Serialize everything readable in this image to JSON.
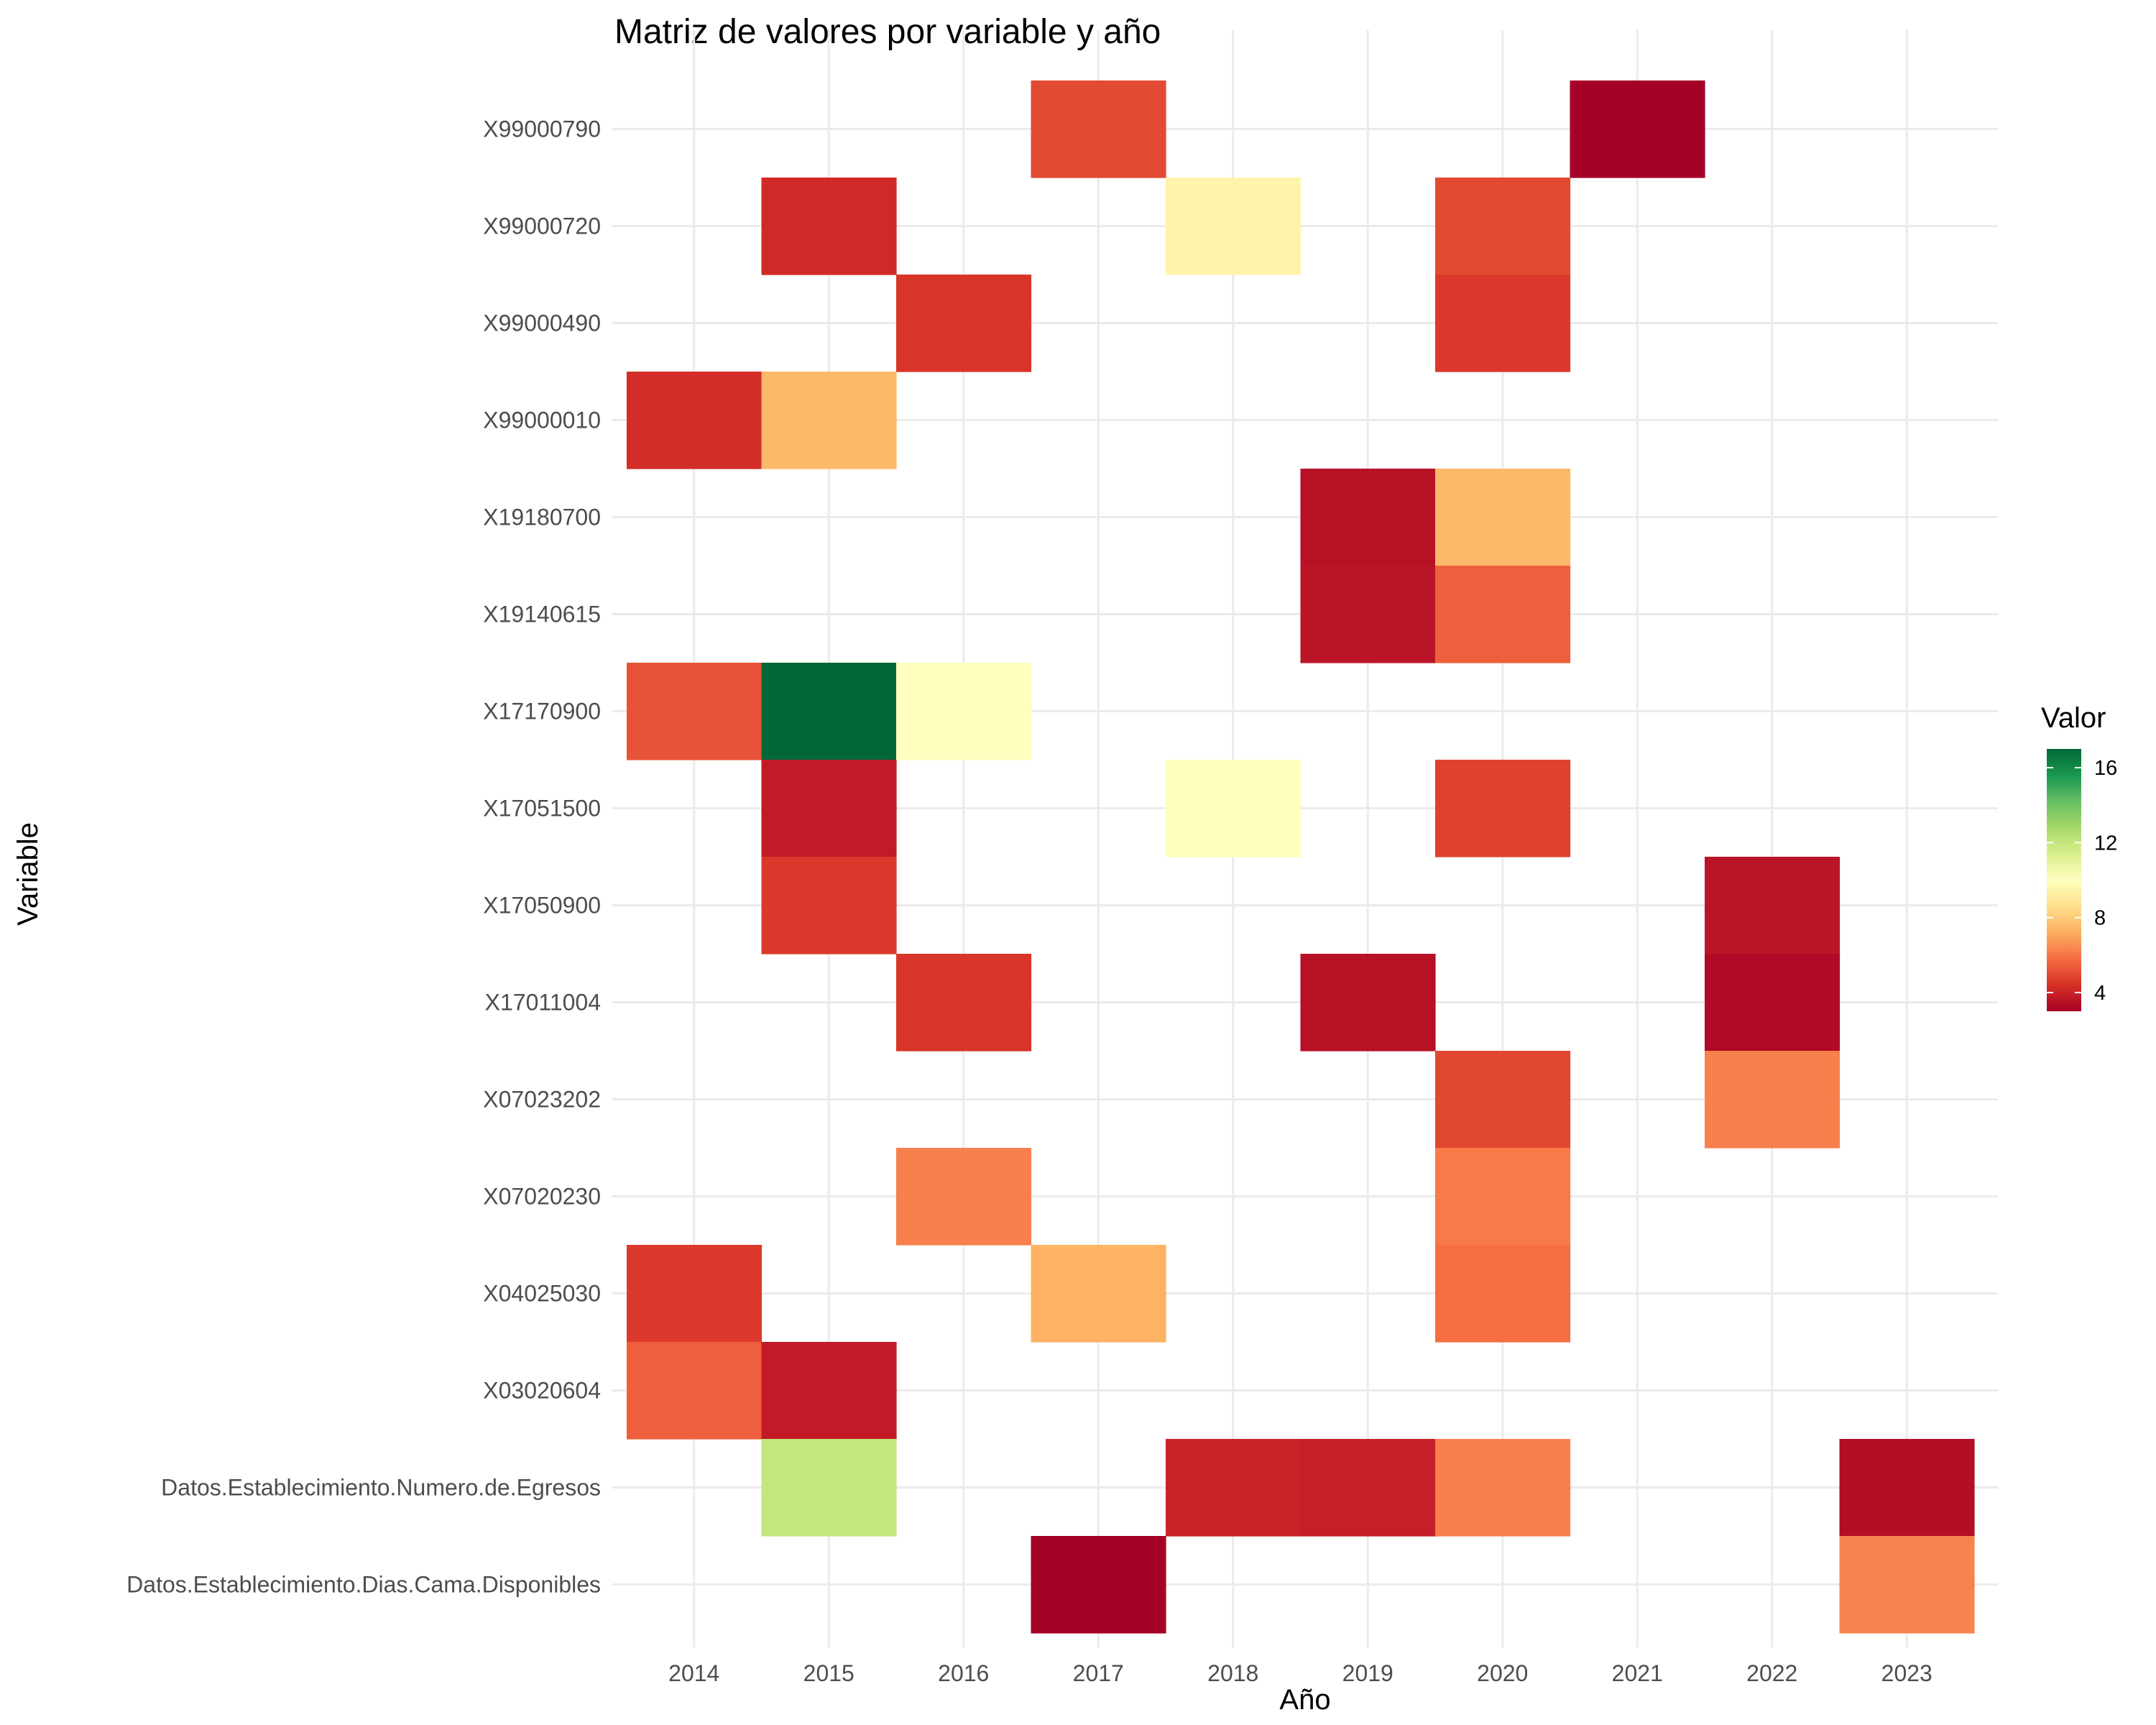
{
  "chart_data": {
    "type": "heatmap",
    "title": "Matriz de valores por variable y año",
    "xlabel": "Año",
    "ylabel": "Variable",
    "x": [
      "2014",
      "2015",
      "2016",
      "2017",
      "2018",
      "2019",
      "2020",
      "2021",
      "2022",
      "2023"
    ],
    "y": [
      "X99000790",
      "X99000720",
      "X99000490",
      "X99000010",
      "X19180700",
      "X19140615",
      "X17170900",
      "X17051500",
      "X17050900",
      "X17011004",
      "X07023202",
      "X07020230",
      "X04025030",
      "X03020604",
      "Datos.Establecimiento.Numero.de.Egresos",
      "Datos.Establecimiento.Dias.Cama.Disponibles"
    ],
    "cells": [
      {
        "x": "2017",
        "y": "X99000790",
        "value": 5
      },
      {
        "x": "2021",
        "y": "X99000790",
        "value": 3
      },
      {
        "x": "2015",
        "y": "X99000720",
        "value": 4.2
      },
      {
        "x": "2018",
        "y": "X99000720",
        "value": 9.5
      },
      {
        "x": "2020",
        "y": "X99000720",
        "value": 5
      },
      {
        "x": "2016",
        "y": "X99000490",
        "value": 4.5
      },
      {
        "x": "2020",
        "y": "X99000490",
        "value": 4.6
      },
      {
        "x": "2014",
        "y": "X99000010",
        "value": 4.3
      },
      {
        "x": "2015",
        "y": "X99000010",
        "value": 7.5
      },
      {
        "x": "2019",
        "y": "X19180700",
        "value": 3.5
      },
      {
        "x": "2020",
        "y": "X19180700",
        "value": 7.5
      },
      {
        "x": "2019",
        "y": "X19140615",
        "value": 3.6
      },
      {
        "x": "2020",
        "y": "X19140615",
        "value": 5.5
      },
      {
        "x": "2014",
        "y": "X17170900",
        "value": 5.2
      },
      {
        "x": "2015",
        "y": "X17170900",
        "value": 17
      },
      {
        "x": "2016",
        "y": "X17170900",
        "value": 10
      },
      {
        "x": "2015",
        "y": "X17051500",
        "value": 3.8
      },
      {
        "x": "2018",
        "y": "X17051500",
        "value": 10
      },
      {
        "x": "2020",
        "y": "X17051500",
        "value": 4.8
      },
      {
        "x": "2015",
        "y": "X17050900",
        "value": 4.6
      },
      {
        "x": "2022",
        "y": "X17050900",
        "value": 3.6
      },
      {
        "x": "2016",
        "y": "X17011004",
        "value": 4.5
      },
      {
        "x": "2019",
        "y": "X17011004",
        "value": 3.5
      },
      {
        "x": "2022",
        "y": "X17011004",
        "value": 3.3
      },
      {
        "x": "2020",
        "y": "X07023202",
        "value": 4.9
      },
      {
        "x": "2022",
        "y": "X07023202",
        "value": 6.2
      },
      {
        "x": "2016",
        "y": "X07020230",
        "value": 6.2
      },
      {
        "x": "2020",
        "y": "X07020230",
        "value": 6.1
      },
      {
        "x": "2014",
        "y": "X04025030",
        "value": 4.6
      },
      {
        "x": "2017",
        "y": "X04025030",
        "value": 7.3
      },
      {
        "x": "2020",
        "y": "X04025030",
        "value": 5.8
      },
      {
        "x": "2014",
        "y": "X03020604",
        "value": 5.5
      },
      {
        "x": "2015",
        "y": "X03020604",
        "value": 3.8
      },
      {
        "x": "2015",
        "y": "Datos.Establecimiento.Numero.de.Egresos",
        "value": 12
      },
      {
        "x": "2018",
        "y": "Datos.Establecimiento.Numero.de.Egresos",
        "value": 4
      },
      {
        "x": "2019",
        "y": "Datos.Establecimiento.Numero.de.Egresos",
        "value": 3.9
      },
      {
        "x": "2020",
        "y": "Datos.Establecimiento.Numero.de.Egresos",
        "value": 6.2
      },
      {
        "x": "2023",
        "y": "Datos.Establecimiento.Numero.de.Egresos",
        "value": 3.4
      },
      {
        "x": "2017",
        "y": "Datos.Establecimiento.Dias.Cama.Disponibles",
        "value": 3
      },
      {
        "x": "2023",
        "y": "Datos.Establecimiento.Dias.Cama.Disponibles",
        "value": 6.3
      }
    ],
    "legend": {
      "title": "Valor",
      "ticks": [
        4,
        8,
        12,
        16
      ],
      "range": [
        3,
        17
      ],
      "position": "right"
    },
    "colorscale": [
      "#a50026",
      "#d73027",
      "#f46d43",
      "#fdae61",
      "#fee08b",
      "#ffffbf",
      "#d9ef8b",
      "#a6d96a",
      "#66bd63",
      "#1a9850",
      "#006837"
    ],
    "grid": true
  }
}
